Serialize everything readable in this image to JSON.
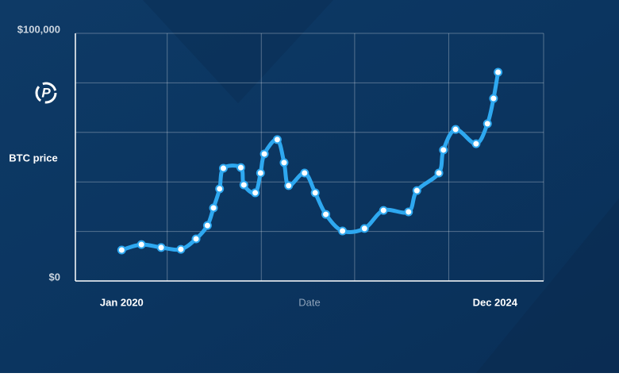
{
  "chart_data": {
    "type": "line",
    "x_label": "Date",
    "y_label": "BTC price",
    "xlim": [
      2019.39,
      2025.56
    ],
    "xticks": [
      {
        "value": 2020,
        "label": "Jan 2020"
      },
      {
        "value": 2024.92,
        "label": "Dec 2024"
      }
    ],
    "ylim": [
      0,
      100000
    ],
    "yticks": [
      {
        "value": 0,
        "label": "$0"
      },
      {
        "value": 100000,
        "label": "$100,000"
      }
    ],
    "ygrid": [
      20000,
      40000,
      60000,
      80000
    ],
    "xgrid": [
      2020.6,
      2021.84,
      2023.07,
      2024.31
    ],
    "series": [
      {
        "name": "BTC",
        "color": "#2ea8f0",
        "x": [
          2020,
          2020.26,
          2020.52,
          2020.78,
          2020.98,
          2021.13,
          2021.21,
          2021.29,
          2021.34,
          2021.57,
          2021.61,
          2021.76,
          2021.83,
          2021.88,
          2022.05,
          2022.14,
          2022.2,
          2022.41,
          2022.55,
          2022.69,
          2022.91,
          2023.2,
          2023.45,
          2023.78,
          2023.89,
          2024.18,
          2024.24,
          2024.4,
          2024.67,
          2024.82,
          2024.9,
          2024.96
        ],
        "values": [
          12500,
          14700,
          13500,
          12800,
          17000,
          22400,
          29500,
          37200,
          45500,
          45800,
          38800,
          35600,
          43600,
          51300,
          57100,
          47800,
          38500,
          43600,
          35600,
          26900,
          20200,
          21200,
          28500,
          27900,
          36500,
          43600,
          52900,
          61200,
          55400,
          63500,
          73700,
          84300
        ]
      }
    ]
  }
}
